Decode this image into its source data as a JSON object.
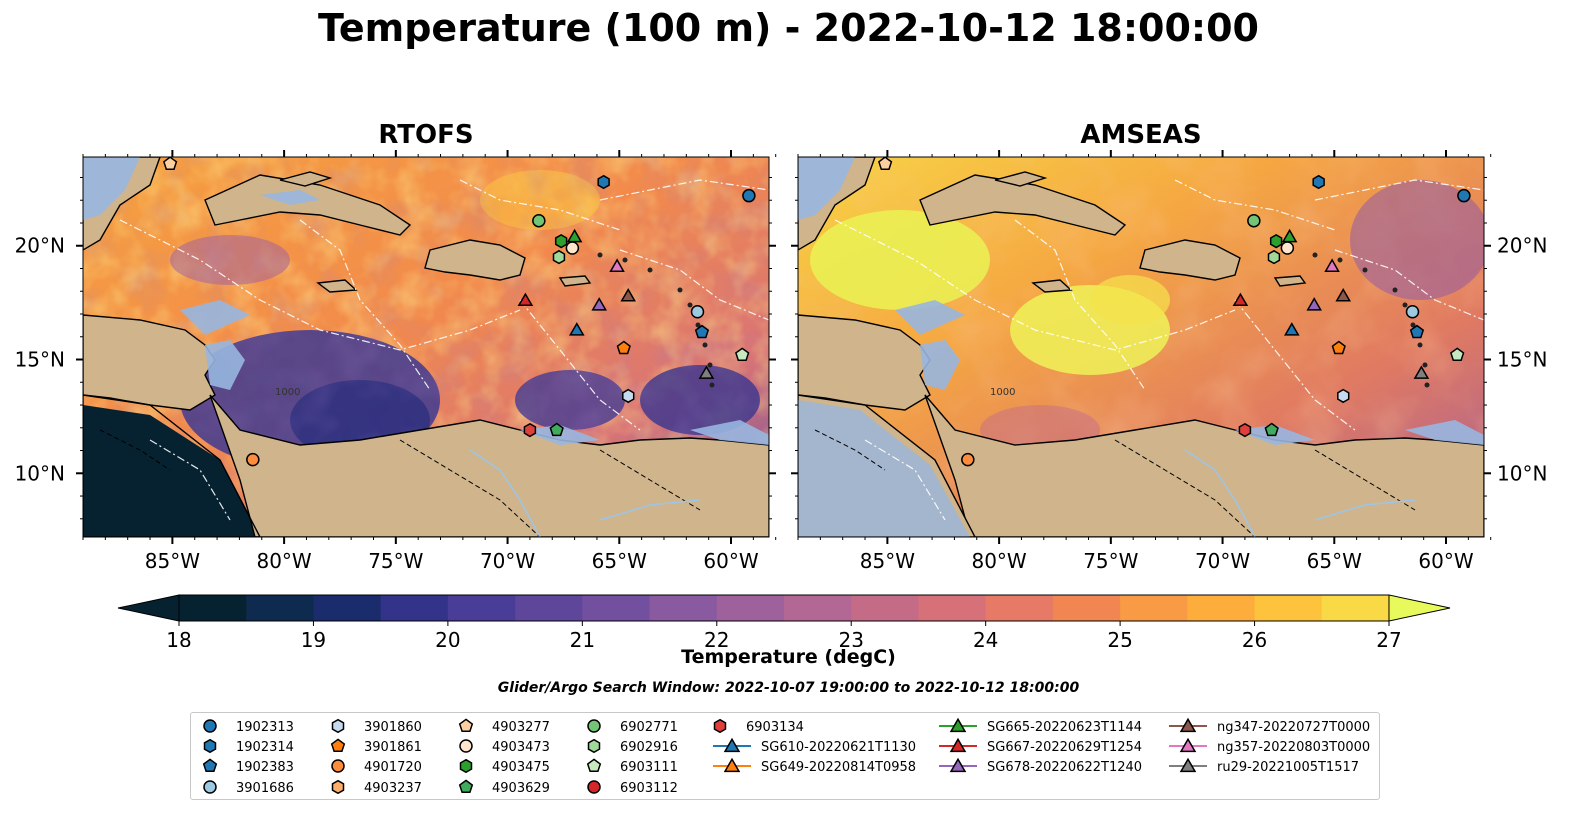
{
  "title": "Temperature (100 m) - 2022-10-12 18:00:00",
  "panels": [
    {
      "name": "RTOFS"
    },
    {
      "name": "AMSEAS"
    }
  ],
  "axes": {
    "lon_ticks": [
      "85°W",
      "80°W",
      "75°W",
      "70°W",
      "65°W",
      "60°W"
    ],
    "lat_ticks": [
      "20°N",
      "15°N",
      "10°N"
    ]
  },
  "contour_labels": [
    "1000",
    "1000"
  ],
  "colorbar": {
    "label": "Temperature (degC)",
    "ticks": [
      "18",
      "19",
      "20",
      "21",
      "22",
      "23",
      "24",
      "25",
      "26",
      "27"
    ],
    "colors": [
      "#062230",
      "#0e2a4e",
      "#1a2c6c",
      "#34338a",
      "#4a3d97",
      "#5e469b",
      "#72509f",
      "#8a5aa0",
      "#9e619c",
      "#b26795",
      "#c46b88",
      "#d6717a",
      "#e67a66",
      "#f28652",
      "#f99a44",
      "#fcad3c",
      "#fdc33d",
      "#f9d945"
    ],
    "extend_low": "#062230",
    "extend_high": "#e8fa5b"
  },
  "search_window": "Glider/Argo Search Window: 2022-10-07 19:00:00 to 2022-10-12 18:00:00",
  "legend": {
    "columns": [
      [
        {
          "label": "1902313",
          "marker": "circle",
          "color": "#1f77b4"
        },
        {
          "label": "1902314",
          "marker": "hexagon",
          "color": "#1f77b4"
        },
        {
          "label": "1902383",
          "marker": "pentagon",
          "color": "#1f77b4"
        },
        {
          "label": "3901686",
          "marker": "circle",
          "color": "#9ecae1"
        }
      ],
      [
        {
          "label": "3901860",
          "marker": "hexagon",
          "color": "#c6dbef"
        },
        {
          "label": "3901861",
          "marker": "pentagon",
          "color": "#ff7f0e"
        },
        {
          "label": "4901720",
          "marker": "circle",
          "color": "#fd8d3c"
        },
        {
          "label": "4903237",
          "marker": "hexagon",
          "color": "#fdae6b"
        }
      ],
      [
        {
          "label": "4903277",
          "marker": "pentagon",
          "color": "#fdd0a2"
        },
        {
          "label": "4903473",
          "marker": "circle",
          "color": "#fee6ce"
        },
        {
          "label": "4903475",
          "marker": "hexagon",
          "color": "#2ca02c"
        },
        {
          "label": "4903629",
          "marker": "pentagon",
          "color": "#41ab5d"
        }
      ],
      [
        {
          "label": "6902771",
          "marker": "circle",
          "color": "#74c476"
        },
        {
          "label": "6902916",
          "marker": "hexagon",
          "color": "#a1d99b"
        },
        {
          "label": "6903111",
          "marker": "pentagon",
          "color": "#c7e9c0"
        },
        {
          "label": "6903112",
          "marker": "circle",
          "color": "#d62728"
        }
      ],
      [
        {
          "label": "6903134",
          "marker": "hexagon",
          "color": "#e0403c"
        },
        {
          "label": "SG610-20220621T1130",
          "marker": "triangle-line",
          "color": "#1f77b4"
        },
        {
          "label": "SG649-20220814T0958",
          "marker": "triangle-line",
          "color": "#ff7f0e"
        }
      ],
      [
        {
          "label": "SG665-20220623T1144",
          "marker": "triangle-line",
          "color": "#2ca02c"
        },
        {
          "label": "SG667-20220629T1254",
          "marker": "triangle-line",
          "color": "#d62728"
        },
        {
          "label": "SG678-20220622T1240",
          "marker": "triangle-line",
          "color": "#9467bd"
        }
      ],
      [
        {
          "label": "ng347-20220727T0000",
          "marker": "triangle-line",
          "color": "#8c564b"
        },
        {
          "label": "ng357-20220803T0000",
          "marker": "triangle-line",
          "color": "#e377c2"
        },
        {
          "label": "ru29-20221005T1517",
          "marker": "triangle-line",
          "color": "#7f7f7f"
        }
      ]
    ]
  },
  "markers": [
    {
      "id": "1902313",
      "marker": "circle",
      "color": "#1f77b4",
      "lon": -59.2,
      "lat": 22.2
    },
    {
      "id": "1902314",
      "marker": "hexagon",
      "color": "#1f77b4",
      "lon": -65.7,
      "lat": 22.8
    },
    {
      "id": "4903277",
      "marker": "pentagon",
      "color": "#fdd0a2",
      "lon": -85.1,
      "lat": 23.6
    },
    {
      "id": "6902771",
      "marker": "circle",
      "color": "#74c476",
      "lon": -68.6,
      "lat": 21.1
    },
    {
      "id": "4903475",
      "marker": "hexagon",
      "color": "#2ca02c",
      "lon": -67.6,
      "lat": 20.2
    },
    {
      "id": "4903473",
      "marker": "circle",
      "color": "#fee6ce",
      "lon": -67.1,
      "lat": 19.9
    },
    {
      "id": "6902916",
      "marker": "hexagon",
      "color": "#a1d99b",
      "lon": -67.7,
      "lat": 19.5
    },
    {
      "id": "SG665-20220623T1144",
      "marker": "triangle",
      "color": "#2ca02c",
      "lon": -67.0,
      "lat": 20.4
    },
    {
      "id": "ng357-20220803T0000",
      "marker": "triangle",
      "color": "#e377c2",
      "lon": -65.1,
      "lat": 19.1
    },
    {
      "id": "SG667-20220629T1254",
      "marker": "triangle",
      "color": "#d62728",
      "lon": -69.2,
      "lat": 17.6
    },
    {
      "id": "SG678-20220622T1240",
      "marker": "triangle",
      "color": "#9467bd",
      "lon": -65.9,
      "lat": 17.4
    },
    {
      "id": "ng347-20220727T0000",
      "marker": "triangle",
      "color": "#8c564b",
      "lon": -64.6,
      "lat": 17.8
    },
    {
      "id": "SG610-20220621T1130",
      "marker": "triangle",
      "color": "#1f77b4",
      "lon": -66.9,
      "lat": 16.3
    },
    {
      "id": "3901686",
      "marker": "circle",
      "color": "#9ecae1",
      "lon": -61.5,
      "lat": 17.1
    },
    {
      "id": "1902383",
      "marker": "pentagon",
      "color": "#1f77b4",
      "lon": -61.3,
      "lat": 16.2
    },
    {
      "id": "3901861",
      "marker": "pentagon",
      "color": "#ff7f0e",
      "lon": -64.8,
      "lat": 15.5
    },
    {
      "id": "6903111",
      "marker": "pentagon",
      "color": "#c7e9c0",
      "lon": -59.5,
      "lat": 15.2
    },
    {
      "id": "ru29-20221005T1517",
      "marker": "triangle",
      "color": "#7f7f7f",
      "lon": -61.1,
      "lat": 14.4
    },
    {
      "id": "3901860",
      "marker": "hexagon",
      "color": "#c6dbef",
      "lon": -64.6,
      "lat": 13.4
    },
    {
      "id": "6903134",
      "marker": "hexagon",
      "color": "#e0403c",
      "lon": -69.0,
      "lat": 11.9
    },
    {
      "id": "4903629",
      "marker": "pentagon",
      "color": "#41ab5d",
      "lon": -67.8,
      "lat": 11.9
    },
    {
      "id": "4901720",
      "marker": "circle",
      "color": "#fd8d3c",
      "lon": -81.4,
      "lat": 10.6
    }
  ]
}
